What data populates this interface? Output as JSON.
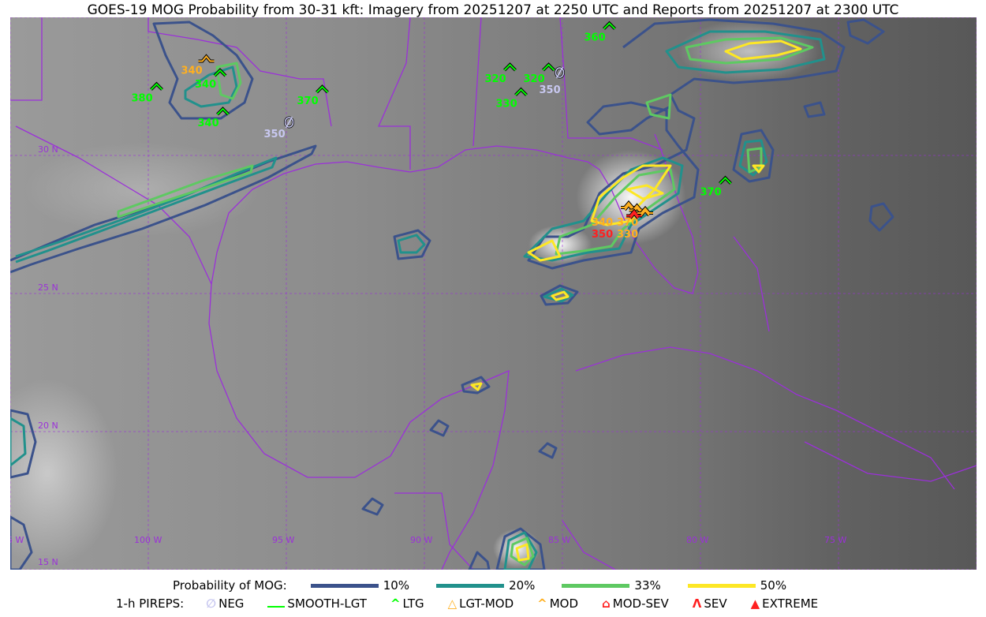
{
  "title": "GOES-19 MOG Probability from 30-31 kft: Imagery from 20251207 at 2250 UTC and Reports from 20251207 at 2300 UTC",
  "map": {
    "projection": "lat-lon",
    "lon_range": [
      -105,
      -70
    ],
    "lat_range": [
      15,
      35
    ],
    "gridlines": true,
    "lon_labels": [
      "105 W",
      "100 W",
      "95 W",
      "90 W",
      "85 W",
      "80 W",
      "75 W"
    ],
    "lat_labels": [
      "30 N",
      "25 N",
      "20 N",
      "15 N"
    ],
    "boundary_color": "#9b30d9",
    "imagery": "grayscale infrared satellite"
  },
  "legend": {
    "prob_title": "Probability of MOG:",
    "prob_levels": [
      {
        "label": "10%",
        "color": "#3b528b"
      },
      {
        "label": "20%",
        "color": "#21918c"
      },
      {
        "label": "33%",
        "color": "#5ec962"
      },
      {
        "label": "50%",
        "color": "#fde725"
      }
    ],
    "pirep_title": "1-h PIREPS:",
    "pirep_types": [
      {
        "label": "NEG",
        "color": "#c8c8f0",
        "icon": "neg-icon"
      },
      {
        "label": "SMOOTH-LGT",
        "color": "#00ff00",
        "icon": "line-icon"
      },
      {
        "label": "LTG",
        "color": "#00ff00",
        "icon": "caret-icon"
      },
      {
        "label": "LGT-MOD",
        "color": "#ffb020",
        "icon": "lgt-mod-icon"
      },
      {
        "label": "MOD",
        "color": "#ffb020",
        "icon": "caret-icon"
      },
      {
        "label": "MOD-SEV",
        "color": "#ff2020",
        "icon": "mod-sev-icon"
      },
      {
        "label": "SEV",
        "color": "#ff2020",
        "icon": "sev-icon"
      },
      {
        "label": "EXTREME",
        "color": "#ff2020",
        "icon": "extreme-icon"
      }
    ]
  },
  "pireps": [
    {
      "type": "LTG",
      "alt": "380",
      "lon": -99.7,
      "lat": 32.5
    },
    {
      "type": "LGT-MOD",
      "alt": "340",
      "lon": -97.9,
      "lat": 33.5
    },
    {
      "type": "LTG",
      "alt": "340",
      "lon": -97.4,
      "lat": 33.0
    },
    {
      "type": "LTG",
      "alt": "340",
      "lon": -97.3,
      "lat": 31.6
    },
    {
      "type": "LTG",
      "alt": "370",
      "lon": -93.7,
      "lat": 32.4
    },
    {
      "type": "NEG",
      "alt": "350",
      "lon": -94.9,
      "lat": 31.2
    },
    {
      "type": "LTG",
      "alt": "320",
      "lon": -86.9,
      "lat": 33.2
    },
    {
      "type": "LTG",
      "alt": "320",
      "lon": -85.5,
      "lat": 33.2
    },
    {
      "type": "LTG",
      "alt": "330",
      "lon": -86.5,
      "lat": 32.3
    },
    {
      "type": "NEG",
      "alt": "350",
      "lon": -85.1,
      "lat": 33.0
    },
    {
      "type": "LTG",
      "alt": "360",
      "lon": -83.3,
      "lat": 34.7
    },
    {
      "type": "LTG",
      "alt": "370",
      "lon": -79.1,
      "lat": 29.1
    },
    {
      "type": "MOD",
      "alt": "340",
      "lon": -82.6,
      "lat": 28.2
    },
    {
      "type": "MOD",
      "alt": "370",
      "lon": -82.3,
      "lat": 28.1
    },
    {
      "type": "MOD-SEV",
      "alt": "350",
      "lon": -82.4,
      "lat": 27.9
    },
    {
      "type": "MOD",
      "alt": "330",
      "lon": -82.0,
      "lat": 28.0
    }
  ]
}
